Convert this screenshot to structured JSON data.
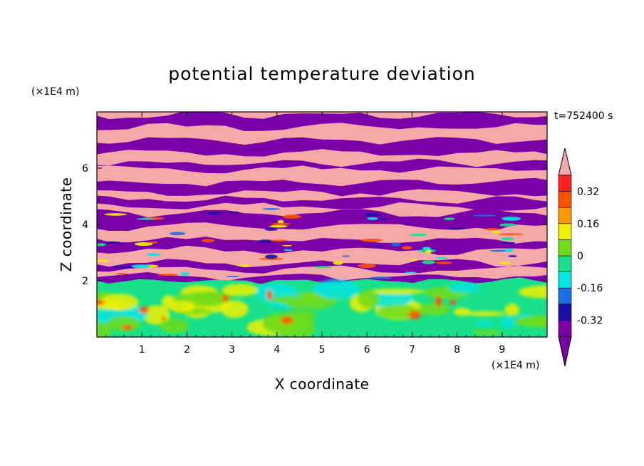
{
  "chart_data": {
    "type": "heatmap",
    "title": "potential temperature deviation",
    "xlabel": "X coordinate",
    "ylabel": "Z coordinate",
    "x_unit": "(×1E4 m)",
    "y_unit": "(×1E4 m)",
    "time_label": "t=752400 s",
    "xlim": [
      0,
      10
    ],
    "ylim": [
      0,
      8
    ],
    "x_ticks": [
      "1",
      "2",
      "3",
      "4",
      "5",
      "6",
      "7",
      "8",
      "9"
    ],
    "y_ticks": [
      "2",
      "4",
      "6"
    ],
    "colorbar": {
      "levels": [
        -0.4,
        -0.32,
        -0.24,
        -0.16,
        -0.08,
        0,
        0.08,
        0.16,
        0.24,
        0.32,
        0.4
      ],
      "labels": [
        "0.32",
        "0.16",
        "0",
        "-0.16",
        "-0.32"
      ],
      "colors": [
        "#7a00a8",
        "#1a0ea8",
        "#1a6ee6",
        "#00e5e5",
        "#18e08a",
        "#70dc18",
        "#f0f000",
        "#ff9a00",
        "#ff5000",
        "#ff2020"
      ],
      "under_color": "#7a00a8",
      "over_color": "#f5a8a8"
    },
    "field_regions": [
      {
        "z_range": [
          0,
          2
        ],
        "description_value": "mixed near-zero values",
        "dominant_colors": [
          "#18e08a",
          "#70dc18",
          "#f0f000",
          "#00e5e5"
        ]
      },
      {
        "z_range": [
          2,
          8
        ],
        "description_value": "alternating layers",
        "dominant_colors": [
          "#f5a8a8",
          "#7a00a8"
        ]
      }
    ]
  }
}
